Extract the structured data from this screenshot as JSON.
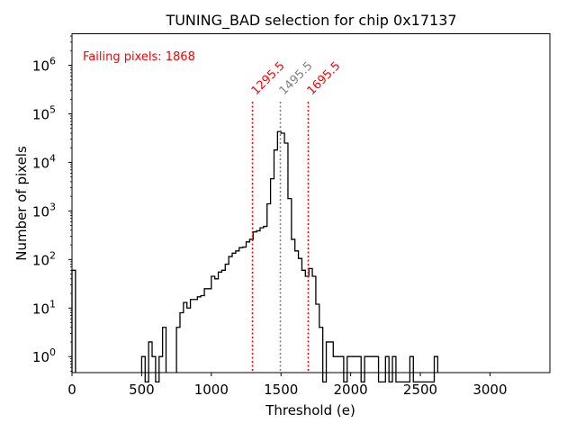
{
  "chart_data": {
    "type": "histogram",
    "title": "TUNING_BAD selection for chip 0x17137",
    "xlabel": "Threshold (e)",
    "ylabel": "Number of pixels",
    "xlim": [
      0,
      3430
    ],
    "ylim_log10": [
      -0.33,
      6.65
    ],
    "yscale": "log",
    "x_ticks": [
      0,
      500,
      1000,
      1500,
      2000,
      2500,
      3000
    ],
    "x_tick_labels": [
      "0",
      "500",
      "1000",
      "1500",
      "2000",
      "2500",
      "3000"
    ],
    "y_ticks": [
      {
        "exp": 0,
        "base": "10",
        "sup": "0"
      },
      {
        "exp": 1,
        "base": "10",
        "sup": "1"
      },
      {
        "exp": 2,
        "base": "10",
        "sup": "2"
      },
      {
        "exp": 3,
        "base": "10",
        "sup": "3"
      },
      {
        "exp": 4,
        "base": "10",
        "sup": "4"
      },
      {
        "exp": 5,
        "base": "10",
        "sup": "5"
      },
      {
        "exp": 6,
        "base": "10",
        "sup": "6"
      }
    ],
    "annotation": {
      "text": "Failing pixels: 1868",
      "color": "#ff0000"
    },
    "vlines": [
      {
        "x": 1295.5,
        "label": "1295.5",
        "color": "#ff0000"
      },
      {
        "x": 1495.5,
        "label": "1495.5",
        "color": "#808080"
      },
      {
        "x": 1695.5,
        "label": "1695.5",
        "color": "#ff0000"
      }
    ],
    "bin_width": 25,
    "histogram_color": "#000000",
    "bins": [
      [
        0,
        60
      ],
      [
        500,
        1
      ],
      [
        525,
        0.3
      ],
      [
        550,
        2
      ],
      [
        575,
        1
      ],
      [
        600,
        0.3
      ],
      [
        625,
        1
      ],
      [
        650,
        4
      ],
      [
        750,
        4
      ],
      [
        775,
        8
      ],
      [
        800,
        13
      ],
      [
        825,
        10
      ],
      [
        850,
        15
      ],
      [
        875,
        15
      ],
      [
        900,
        17
      ],
      [
        925,
        18
      ],
      [
        950,
        25
      ],
      [
        975,
        25
      ],
      [
        1000,
        45
      ],
      [
        1025,
        40
      ],
      [
        1050,
        55
      ],
      [
        1075,
        60
      ],
      [
        1100,
        80
      ],
      [
        1125,
        115
      ],
      [
        1150,
        135
      ],
      [
        1175,
        150
      ],
      [
        1200,
        175
      ],
      [
        1225,
        180
      ],
      [
        1250,
        230
      ],
      [
        1275,
        260
      ],
      [
        1300,
        370
      ],
      [
        1325,
        390
      ],
      [
        1350,
        450
      ],
      [
        1375,
        480
      ],
      [
        1400,
        1400
      ],
      [
        1425,
        4600
      ],
      [
        1450,
        18000
      ],
      [
        1475,
        43000
      ],
      [
        1500,
        40000
      ],
      [
        1525,
        25000
      ],
      [
        1550,
        1800
      ],
      [
        1575,
        260
      ],
      [
        1600,
        150
      ],
      [
        1625,
        105
      ],
      [
        1650,
        60
      ],
      [
        1675,
        45
      ],
      [
        1700,
        65
      ],
      [
        1725,
        45
      ],
      [
        1750,
        12
      ],
      [
        1775,
        4
      ],
      [
        1800,
        0.3
      ],
      [
        1825,
        2
      ],
      [
        1850,
        2
      ],
      [
        1875,
        1
      ],
      [
        1900,
        1
      ],
      [
        1925,
        1
      ],
      [
        1950,
        0.3
      ],
      [
        1975,
        1
      ],
      [
        2000,
        1
      ],
      [
        2025,
        1
      ],
      [
        2050,
        1
      ],
      [
        2075,
        0.3
      ],
      [
        2100,
        1
      ],
      [
        2125,
        1
      ],
      [
        2150,
        1
      ],
      [
        2175,
        1
      ],
      [
        2200,
        0.3
      ],
      [
        2225,
        0.3
      ],
      [
        2250,
        1
      ],
      [
        2275,
        0.3
      ],
      [
        2300,
        1
      ],
      [
        2325,
        0.3
      ],
      [
        2350,
        0.3
      ],
      [
        2375,
        0.3
      ],
      [
        2400,
        0.3
      ],
      [
        2425,
        1
      ],
      [
        2450,
        0.3
      ],
      [
        2475,
        0.3
      ],
      [
        2500,
        0.3
      ],
      [
        2525,
        0.3
      ],
      [
        2550,
        0.3
      ],
      [
        2575,
        0.3
      ],
      [
        2600,
        1
      ]
    ]
  }
}
